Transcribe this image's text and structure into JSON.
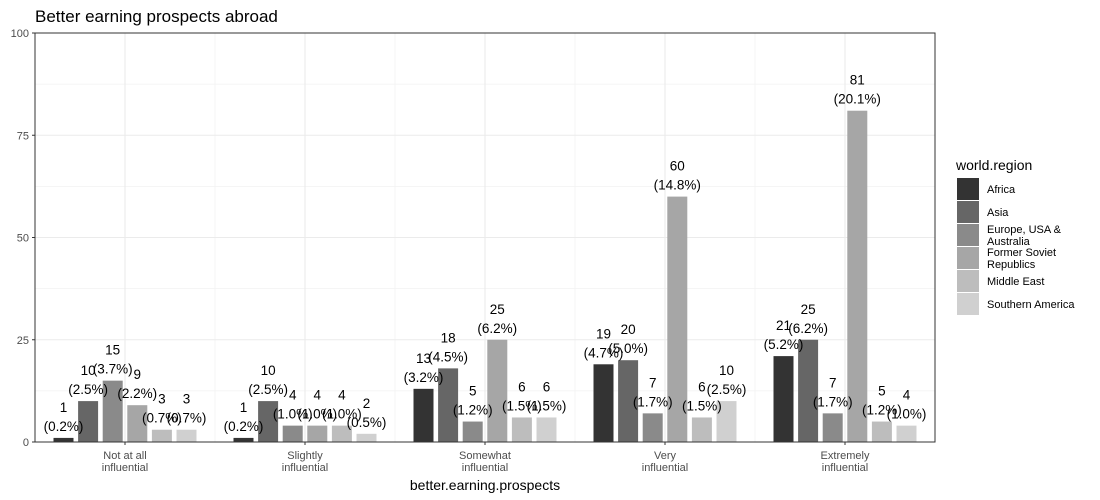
{
  "chart_data": {
    "type": "bar",
    "title": "Better earning prospects abroad",
    "xlabel": "better.earning.prospects",
    "ylabel": "",
    "ylim": [
      0,
      100
    ],
    "yticks": [
      "0",
      "25",
      "50",
      "75",
      "100"
    ],
    "grid": true,
    "legend_position": "right",
    "legend_title": "world.region",
    "categories": [
      [
        "Not at all",
        "influential"
      ],
      [
        "Slightly",
        "influential"
      ],
      [
        "Somewhat",
        "influential"
      ],
      [
        "Very",
        "influential"
      ],
      [
        "Extremely",
        "influential"
      ]
    ],
    "series": [
      {
        "name": [
          "Africa"
        ],
        "color": "#333333",
        "values": [
          1,
          1,
          13,
          19,
          21
        ],
        "labels": [
          "(0.2%)",
          "(0.2%)",
          "(3.2%)",
          "(4.7%)",
          "(5.2%)"
        ]
      },
      {
        "name": [
          "Asia"
        ],
        "color": "#666666",
        "values": [
          10,
          10,
          18,
          20,
          25
        ],
        "labels": [
          "(2.5%)",
          "(2.5%)",
          "(4.5%)",
          "(5.0%)",
          "(6.2%)"
        ]
      },
      {
        "name": [
          "Europe, USA &",
          "Australia"
        ],
        "color": "#8a8a8a",
        "values": [
          15,
          4,
          5,
          7,
          7
        ],
        "labels": [
          "(3.7%)",
          "(1.0%)",
          "(1.2%)",
          "(1.7%)",
          "(1.7%)"
        ]
      },
      {
        "name": [
          "Former Soviet",
          "Republics"
        ],
        "color": "#a6a6a6",
        "values": [
          9,
          4,
          25,
          60,
          81
        ],
        "labels": [
          "(2.2%)",
          "(1.0%)",
          "(6.2%)",
          "(14.8%)",
          "(20.1%)"
        ]
      },
      {
        "name": [
          "Middle East"
        ],
        "color": "#bdbdbd",
        "values": [
          3,
          4,
          6,
          6,
          5
        ],
        "labels": [
          "(0.7%)",
          "(1.0%)",
          "(1.5%)",
          "(1.5%)",
          "(1.2%)"
        ]
      },
      {
        "name": [
          "Southern America"
        ],
        "color": "#d0d0d0",
        "values": [
          3,
          2,
          6,
          10,
          4
        ],
        "labels": [
          "(0.7%)",
          "(0.5%)",
          "(1.5%)",
          "(2.5%)",
          "(1.0%)"
        ]
      }
    ]
  }
}
